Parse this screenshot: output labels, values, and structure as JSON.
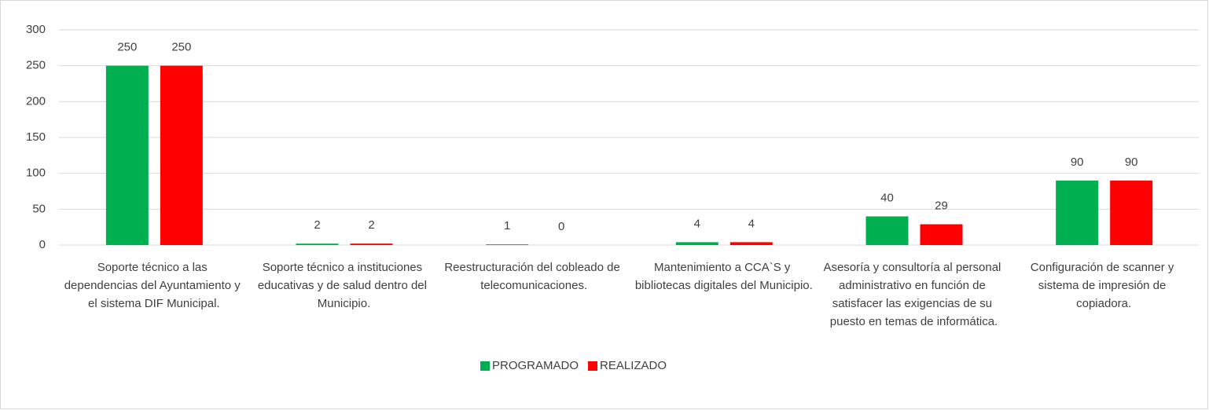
{
  "chart_data": {
    "type": "bar",
    "categories": [
      "Soporte técnico a las dependencias del Ayuntamiento y el sistema DIF Municipal.",
      "Soporte técnico a instituciones educativas y de salud dentro del Municipio.",
      "Reestructuración del cobleado de telecomunicaciones.",
      "Mantenimiento a CCA`S y bibliotecas digitales del Municipio.",
      "Asesoría y consultoría al personal administrativo en función de satisfacer las exigencias de su puesto en temas de informática.",
      "Configuración de scanner y sistema de impresión de copiadora."
    ],
    "series": [
      {
        "name": "PROGRAMADO",
        "color": "#00b050",
        "values": [
          250,
          2,
          1,
          4,
          40,
          90
        ]
      },
      {
        "name": "REALIZADO",
        "color": "#ff0000",
        "values": [
          250,
          2,
          0,
          4,
          29,
          90
        ]
      }
    ],
    "ylim": [
      0,
      300
    ],
    "yticks": [
      0,
      50,
      100,
      150,
      200,
      250,
      300
    ],
    "grid": true,
    "legend": "bottom"
  }
}
